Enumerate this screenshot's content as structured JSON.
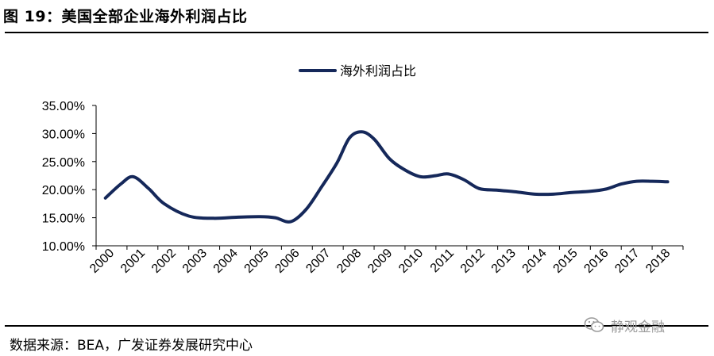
{
  "figure": {
    "title": "图 19：美国全部企业海外利润占比",
    "source": "数据来源：BEA，广发证券发展研究中心",
    "watermark": "静观金融",
    "watermark_icon": "wechat-icon"
  },
  "colors": {
    "line": "#15285a",
    "axis": "#000000",
    "watermark": "#9a9a9a"
  },
  "chart_data": {
    "type": "line",
    "title": "",
    "xlabel": "",
    "ylabel": "",
    "legend_position": "top-center",
    "grid": false,
    "ylim": [
      10,
      35
    ],
    "y_ticks": [
      "10.00%",
      "15.00%",
      "20.00%",
      "25.00%",
      "30.00%",
      "35.00%"
    ],
    "y_tick_values": [
      10,
      15,
      20,
      25,
      30,
      35
    ],
    "categories": [
      "2000",
      "2001",
      "2002",
      "2003",
      "2004",
      "2005",
      "2006",
      "2007",
      "2008",
      "2009",
      "2010",
      "2011",
      "2012",
      "2013",
      "2014",
      "2015",
      "2016",
      "2017",
      "2018"
    ],
    "series": [
      {
        "name": "海外利润占比",
        "x": [
          2000.3,
          2000.8,
          2001.2,
          2001.7,
          2002.2,
          2003.0,
          2003.8,
          2004.6,
          2005.3,
          2005.8,
          2006.3,
          2006.8,
          2007.3,
          2007.8,
          2008.2,
          2008.6,
          2009.0,
          2009.5,
          2010.0,
          2010.5,
          2011.0,
          2011.4,
          2011.9,
          2012.4,
          2013.0,
          2013.6,
          2014.2,
          2014.8,
          2015.4,
          2016.0,
          2016.5,
          2017.0,
          2017.5,
          2018.0,
          2018.5
        ],
        "values": [
          18.5,
          21.0,
          22.3,
          20.2,
          17.5,
          15.3,
          14.9,
          15.1,
          15.2,
          15.0,
          14.3,
          16.5,
          20.5,
          24.8,
          29.2,
          30.3,
          29.0,
          25.5,
          23.5,
          22.3,
          22.5,
          22.8,
          21.8,
          20.2,
          19.9,
          19.6,
          19.2,
          19.2,
          19.5,
          19.7,
          20.1,
          21.0,
          21.5,
          21.5,
          21.4
        ]
      }
    ]
  }
}
